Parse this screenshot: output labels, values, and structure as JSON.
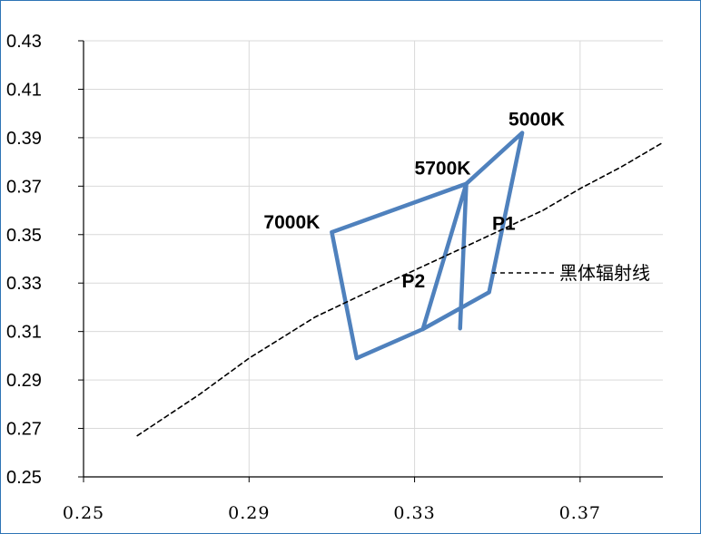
{
  "chart_data": {
    "type": "line",
    "title": "",
    "xlabel": "",
    "ylabel": "",
    "xlim": [
      0.25,
      0.39
    ],
    "ylim": [
      0.25,
      0.43
    ],
    "x_ticks": [
      "0.25",
      "0.29",
      "0.33",
      "0.37"
    ],
    "y_ticks": [
      "0.43",
      "0.41",
      "0.39",
      "0.37",
      "0.35",
      "0.33",
      "0.31",
      "0.29",
      "0.27",
      "0.25"
    ],
    "grid": true,
    "legend_position": "right",
    "series": [
      {
        "name": "",
        "style": "solid",
        "color": "#4f81bd",
        "points": [
          [
            0.3425,
            0.371
          ],
          [
            0.332,
            0.311
          ],
          [
            0.316,
            0.299
          ],
          [
            0.31,
            0.351
          ],
          [
            0.3425,
            0.371
          ],
          [
            0.341,
            0.3113
          ]
        ]
      },
      {
        "name": "",
        "style": "solid",
        "color": "#4f81bd",
        "points": [
          [
            0.3425,
            0.371
          ],
          [
            0.356,
            0.392
          ],
          [
            0.348,
            0.3262
          ],
          [
            0.332,
            0.311
          ]
        ]
      },
      {
        "name": "黑体辐射线",
        "style": "dashed",
        "color": "#000000",
        "points": [
          [
            0.263,
            0.267
          ],
          [
            0.278,
            0.284
          ],
          [
            0.29,
            0.299
          ],
          [
            0.306,
            0.316
          ],
          [
            0.322,
            0.329
          ],
          [
            0.341,
            0.344
          ],
          [
            0.361,
            0.36
          ],
          [
            0.37,
            0.369
          ],
          [
            0.38,
            0.378
          ],
          [
            0.39,
            0.388
          ]
        ]
      }
    ],
    "annotations": [
      {
        "text": "5000K",
        "x": 0.356,
        "y": 0.392
      },
      {
        "text": "5700K",
        "x": 0.3425,
        "y": 0.371
      },
      {
        "text": "7000K",
        "x": 0.31,
        "y": 0.351
      },
      {
        "text": "P1",
        "x": 0.347,
        "y": 0.352
      },
      {
        "text": "P2",
        "x": 0.3335,
        "y": 0.332
      }
    ]
  }
}
